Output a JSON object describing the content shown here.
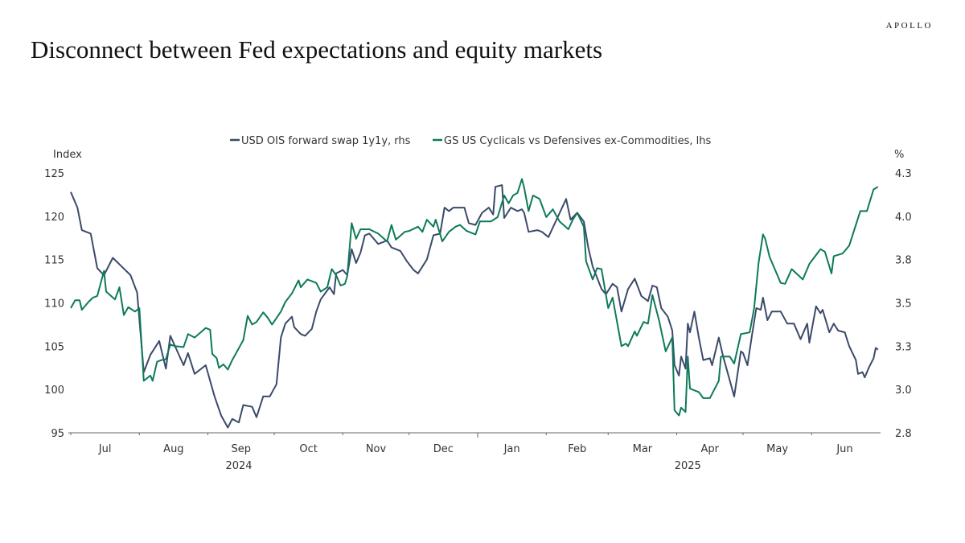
{
  "header": {
    "logo": "APOLLO",
    "title": "Disconnect between Fed expectations and equity markets"
  },
  "chart_data": {
    "type": "line",
    "title": "Disconnect between Fed expectations and equity markets",
    "x_unit": "days since 2024-07-01",
    "left_axis": {
      "label": "Index",
      "range": [
        95,
        125
      ],
      "ticks": [
        95,
        100,
        105,
        110,
        115,
        120,
        125
      ]
    },
    "right_axis": {
      "label": "%",
      "range": [
        2.75,
        4.25
      ],
      "ticks": [
        2.75,
        3.0,
        3.25,
        3.5,
        3.75,
        4.0,
        4.25
      ],
      "tick_labels": [
        "2.8",
        "3.0",
        "3.3",
        "3.5",
        "3.8",
        "4.0",
        "4.3"
      ]
    },
    "x_axis": {
      "months": [
        {
          "label": "Jul",
          "start": 0
        },
        {
          "label": "Aug",
          "start": 31
        },
        {
          "label": "Sep",
          "start": 62
        },
        {
          "label": "Oct",
          "start": 92
        },
        {
          "label": "Nov",
          "start": 123
        },
        {
          "label": "Dec",
          "start": 153
        },
        {
          "label": "Jan",
          "start": 184
        },
        {
          "label": "Feb",
          "start": 215
        },
        {
          "label": "Mar",
          "start": 243
        },
        {
          "label": "Apr",
          "start": 274
        },
        {
          "label": "May",
          "start": 304
        },
        {
          "label": "Jun",
          "start": 335
        }
      ],
      "end": 365,
      "years": [
        {
          "label": "2024",
          "center": 76
        },
        {
          "label": "2025",
          "center": 279
        }
      ]
    },
    "legend_position": "top-center",
    "series": [
      {
        "name": "USD OIS forward swap 1y1y, rhs",
        "axis": "right",
        "color": "#3b4a6b",
        "x": [
          0,
          3,
          5,
          9,
          12,
          15,
          19,
          23,
          27,
          30,
          33,
          36,
          40,
          43,
          45,
          51,
          53,
          56,
          61,
          65,
          68,
          71,
          73,
          76,
          78,
          82,
          84,
          87,
          90,
          93,
          95,
          97,
          100,
          101,
          104,
          106,
          109,
          111,
          113,
          117,
          119,
          120,
          123,
          125,
          127,
          129,
          131,
          133,
          135,
          139,
          143,
          145,
          149,
          152,
          155,
          157,
          161,
          164,
          167,
          169,
          171,
          173,
          178,
          180,
          183,
          186,
          189,
          191,
          192,
          195,
          196,
          199,
          202,
          204,
          205,
          207,
          211,
          213,
          216,
          220,
          224,
          226,
          229,
          232,
          234,
          236,
          240,
          242,
          245,
          247,
          249,
          252,
          255,
          258,
          261,
          263,
          265,
          267,
          270,
          272,
          273,
          275,
          276,
          278,
          279,
          280,
          282,
          284,
          286,
          289,
          290,
          293,
          295,
          300,
          303,
          304,
          306,
          308,
          310,
          312,
          313,
          315,
          317,
          321,
          324,
          327,
          330,
          333,
          334,
          337,
          339,
          340,
          343,
          345,
          347,
          350,
          352,
          355,
          356,
          358,
          359,
          361,
          363,
          364,
          365
        ],
        "y": [
          4.14,
          4.05,
          3.92,
          3.9,
          3.7,
          3.66,
          3.76,
          3.71,
          3.66,
          3.56,
          3.1,
          3.2,
          3.28,
          3.12,
          3.31,
          3.14,
          3.21,
          3.09,
          3.14,
          2.96,
          2.85,
          2.78,
          2.83,
          2.81,
          2.91,
          2.9,
          2.84,
          2.96,
          2.96,
          3.03,
          3.3,
          3.38,
          3.42,
          3.36,
          3.32,
          3.31,
          3.35,
          3.45,
          3.52,
          3.59,
          3.55,
          3.67,
          3.69,
          3.66,
          3.81,
          3.73,
          3.79,
          3.89,
          3.9,
          3.84,
          3.86,
          3.82,
          3.8,
          3.74,
          3.69,
          3.67,
          3.75,
          3.89,
          3.9,
          4.05,
          4.03,
          4.05,
          4.05,
          3.96,
          3.95,
          4.02,
          4.05,
          4.01,
          4.17,
          4.18,
          3.99,
          4.05,
          4.03,
          4.04,
          4.02,
          3.91,
          3.92,
          3.91,
          3.88,
          3.99,
          4.1,
          3.98,
          4.02,
          3.97,
          3.82,
          3.71,
          3.58,
          3.55,
          3.61,
          3.59,
          3.45,
          3.58,
          3.64,
          3.54,
          3.51,
          3.6,
          3.59,
          3.47,
          3.42,
          3.34,
          3.14,
          3.08,
          3.19,
          3.12,
          3.38,
          3.33,
          3.45,
          3.3,
          3.17,
          3.18,
          3.14,
          3.3,
          3.19,
          2.96,
          3.22,
          3.21,
          3.14,
          3.31,
          3.47,
          3.46,
          3.53,
          3.4,
          3.45,
          3.45,
          3.38,
          3.38,
          3.29,
          3.38,
          3.27,
          3.48,
          3.44,
          3.46,
          3.33,
          3.38,
          3.34,
          3.33,
          3.25,
          3.17,
          3.09,
          3.1,
          3.07,
          3.13,
          3.18,
          3.24,
          3.23
        ]
      },
      {
        "name": "GS US Cyclicals vs Defensives ex-Commodities, lhs",
        "axis": "left",
        "color": "#0e7a5a",
        "x": [
          0,
          2,
          4,
          5,
          8,
          10,
          12,
          15,
          16,
          20,
          22,
          24,
          26,
          29,
          31,
          33,
          36,
          37,
          39,
          41,
          43,
          45,
          47,
          51,
          53,
          56,
          61,
          63,
          64,
          66,
          67,
          69,
          71,
          73,
          78,
          80,
          82,
          84,
          87,
          89,
          91,
          95,
          97,
          100,
          103,
          104,
          107,
          111,
          113,
          116,
          118,
          120,
          122,
          124,
          125,
          127,
          129,
          131,
          135,
          139,
          143,
          145,
          147,
          151,
          153,
          157,
          159,
          161,
          164,
          165,
          168,
          171,
          174,
          176,
          179,
          183,
          185,
          190,
          193,
          196,
          198,
          200,
          202,
          204,
          205,
          207,
          209,
          212,
          215,
          216,
          218,
          221,
          225,
          227,
          229,
          232,
          233,
          236,
          238,
          240,
          243,
          245,
          249,
          251,
          252,
          255,
          256,
          259,
          261,
          263,
          266,
          269,
          272,
          273,
          275,
          276,
          278,
          279,
          280,
          284,
          286,
          289,
          293,
          294,
          298,
          300,
          303,
          307,
          309,
          311,
          313,
          314,
          316,
          321,
          323,
          326,
          331,
          334,
          339,
          341,
          344,
          345,
          349,
          352,
          357,
          360,
          363,
          365
        ],
        "y": [
          109.4,
          110.3,
          110.3,
          109.2,
          110.1,
          110.6,
          110.8,
          113.7,
          111.3,
          110.4,
          111.8,
          108.6,
          109.5,
          109.0,
          109.4,
          101.0,
          101.6,
          101.0,
          103.2,
          103.4,
          103.5,
          105.2,
          105.0,
          104.9,
          106.4,
          106.0,
          107.1,
          106.9,
          104.1,
          103.6,
          102.5,
          102.9,
          102.3,
          103.4,
          105.7,
          108.5,
          107.5,
          107.8,
          108.9,
          108.3,
          107.5,
          109.0,
          110.1,
          111.1,
          112.6,
          111.8,
          112.7,
          112.3,
          111.3,
          111.8,
          113.9,
          113.2,
          112.0,
          112.2,
          113.1,
          119.2,
          117.4,
          118.5,
          118.5,
          118.0,
          117.1,
          119.0,
          117.3,
          118.2,
          118.3,
          118.8,
          118.2,
          119.6,
          118.8,
          119.6,
          117.1,
          118.2,
          118.8,
          119.0,
          118.3,
          117.9,
          119.4,
          119.4,
          119.9,
          122.4,
          121.5,
          122.4,
          122.7,
          124.3,
          123.3,
          120.6,
          122.4,
          122.0,
          119.9,
          120.2,
          120.8,
          119.4,
          118.5,
          119.6,
          120.4,
          118.8,
          114.8,
          112.7,
          114.0,
          113.9,
          109.4,
          110.6,
          105.0,
          105.3,
          105.0,
          106.7,
          106.2,
          107.8,
          107.6,
          110.9,
          108.0,
          104.4,
          106.0,
          97.6,
          97.0,
          97.9,
          97.4,
          103.8,
          100.1,
          99.7,
          99.0,
          99.0,
          101.0,
          103.8,
          103.8,
          103.0,
          106.4,
          106.6,
          109.4,
          114.6,
          117.9,
          117.4,
          115.3,
          112.3,
          112.2,
          113.9,
          112.7,
          114.5,
          116.2,
          115.9,
          113.4,
          115.4,
          115.7,
          116.6,
          120.6,
          120.6,
          123.1,
          123.4
        ]
      }
    ]
  }
}
